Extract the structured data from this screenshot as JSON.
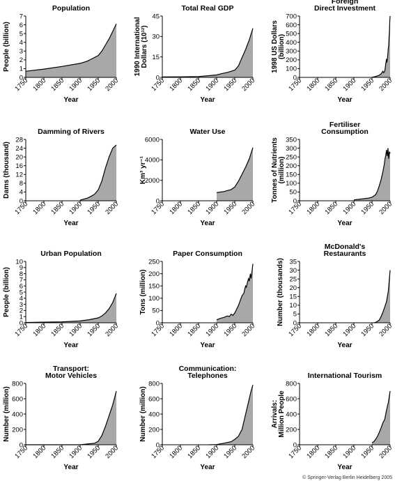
{
  "credit": "© Springer-Verlag Berlin Heidelberg 2005",
  "colors": {
    "fill": "#a8a8a8",
    "line": "#000000"
  },
  "chart_data": [
    {
      "type": "area",
      "title": [
        "Population"
      ],
      "ylabel": [
        "People (billion)"
      ],
      "xlabel": "Year",
      "xlim": [
        1750,
        2000
      ],
      "ylim": [
        0,
        7
      ],
      "xticks": [
        1750,
        1800,
        1850,
        1900,
        1950,
        2000
      ],
      "yticks": [
        0,
        1,
        2,
        3,
        4,
        5,
        6,
        7
      ],
      "x": [
        1750,
        1800,
        1850,
        1900,
        1920,
        1950,
        1960,
        1970,
        1980,
        1990,
        2000
      ],
      "y": [
        0.7,
        0.95,
        1.25,
        1.6,
        1.85,
        2.5,
        3.0,
        3.7,
        4.4,
        5.25,
        6.1
      ]
    },
    {
      "type": "area",
      "title": [
        "Total Real GDP"
      ],
      "ylabel": [
        "1990 International",
        "Dollars (10¹²)"
      ],
      "xlabel": "Year",
      "xlim": [
        1750,
        2000
      ],
      "ylim": [
        0,
        45
      ],
      "xticks": [
        1750,
        1800,
        1850,
        1900,
        1950,
        2000
      ],
      "yticks": [
        0,
        15,
        30,
        45
      ],
      "x": [
        1750,
        1800,
        1850,
        1900,
        1913,
        1930,
        1950,
        1960,
        1970,
        1980,
        1990,
        2000
      ],
      "y": [
        0.3,
        0.4,
        0.6,
        1.8,
        2.7,
        3.7,
        5.3,
        8.4,
        14.5,
        20.5,
        27.5,
        36
      ]
    },
    {
      "type": "area",
      "title": [
        "Foreign",
        "Direct Investment"
      ],
      "ylabel": [
        "1998 US Dollars",
        "(billion)"
      ],
      "xlabel": "Year",
      "xlim": [
        1750,
        2000
      ],
      "ylim": [
        0,
        700
      ],
      "xticks": [
        1750,
        1800,
        1850,
        1900,
        1950,
        2000
      ],
      "yticks": [
        0,
        100,
        200,
        300,
        400,
        500,
        600,
        700
      ],
      "x": [
        1950,
        1960,
        1970,
        1975,
        1980,
        1982,
        1984,
        1986,
        1988,
        1990,
        1991,
        1993,
        1995,
        1996,
        1997,
        1998,
        1999,
        2000
      ],
      "y": [
        0,
        10,
        25,
        40,
        70,
        55,
        60,
        90,
        160,
        210,
        170,
        230,
        330,
        360,
        450,
        520,
        640,
        700
      ]
    },
    {
      "type": "area",
      "title": [
        "Damming of Rivers"
      ],
      "ylabel": [
        "Dams (thousand)"
      ],
      "xlabel": "Year",
      "xlim": [
        1750,
        2000
      ],
      "ylim": [
        0,
        28
      ],
      "xticks": [
        1750,
        1800,
        1850,
        1900,
        1950,
        2000
      ],
      "yticks": [
        0,
        4,
        8,
        12,
        16,
        20,
        24,
        28
      ],
      "x": [
        1900,
        1920,
        1930,
        1940,
        1950,
        1960,
        1970,
        1980,
        1990,
        2000
      ],
      "y": [
        0.3,
        1.2,
        2,
        3,
        5,
        9,
        15,
        20,
        24,
        25.5
      ]
    },
    {
      "type": "area",
      "title": [
        "Water Use"
      ],
      "ylabel": [
        "Km³ yr⁻¹"
      ],
      "xlabel": "Year",
      "xlim": [
        1750,
        2000
      ],
      "ylim": [
        0,
        6000
      ],
      "xticks": [
        1750,
        1800,
        1850,
        1900,
        1950,
        2000
      ],
      "yticks": [
        0,
        2000,
        4000,
        6000
      ],
      "x": [
        1900,
        1910,
        1920,
        1930,
        1940,
        1950,
        1960,
        1970,
        1980,
        1990,
        2000
      ],
      "y": [
        800,
        850,
        900,
        1000,
        1100,
        1350,
        1900,
        2600,
        3300,
        4100,
        5200
      ]
    },
    {
      "type": "area",
      "title": [
        "Fertiliser",
        "Consumption"
      ],
      "ylabel": [
        "Tonnes of Nutrients",
        "(million)"
      ],
      "xlabel": "Year",
      "xlim": [
        1750,
        2000
      ],
      "ylim": [
        0,
        350
      ],
      "xticks": [
        1750,
        1800,
        1850,
        1900,
        1950,
        2000
      ],
      "yticks": [
        0,
        50,
        100,
        150,
        200,
        250,
        300,
        350
      ],
      "x": [
        1900,
        1920,
        1940,
        1950,
        1960,
        1965,
        1970,
        1975,
        1980,
        1984,
        1986,
        1988,
        1990,
        1992,
        1994,
        1996,
        1998,
        2000
      ],
      "y": [
        5,
        10,
        15,
        20,
        35,
        55,
        85,
        120,
        165,
        210,
        240,
        260,
        290,
        255,
        300,
        240,
        280,
        270
      ]
    },
    {
      "type": "area",
      "title": [
        "Urban Population"
      ],
      "ylabel": [
        "People (billion)"
      ],
      "xlabel": "Year",
      "xlim": [
        1750,
        2000
      ],
      "ylim": [
        0,
        10
      ],
      "xticks": [
        1750,
        1800,
        1850,
        1900,
        1950,
        2000
      ],
      "yticks": [
        0,
        1,
        2,
        3,
        4,
        5,
        6,
        7,
        8,
        9,
        10
      ],
      "x": [
        1750,
        1800,
        1850,
        1900,
        1925,
        1950,
        1960,
        1970,
        1980,
        1990,
        2000
      ],
      "y": [
        0.05,
        0.1,
        0.15,
        0.3,
        0.5,
        0.8,
        1.1,
        1.6,
        2.3,
        3.3,
        4.8
      ]
    },
    {
      "type": "area",
      "title": [
        "Paper Consumption"
      ],
      "ylabel": [
        "Tons (million)"
      ],
      "xlabel": "Year",
      "xlim": [
        1750,
        2000
      ],
      "ylim": [
        0,
        250
      ],
      "xticks": [
        1750,
        1800,
        1850,
        1900,
        1950,
        2000
      ],
      "yticks": [
        0,
        50,
        100,
        150,
        200,
        250
      ],
      "x": [
        1900,
        1910,
        1920,
        1930,
        1935,
        1940,
        1945,
        1950,
        1955,
        1960,
        1965,
        1970,
        1975,
        1978,
        1980,
        1982,
        1985,
        1988,
        1990,
        1993,
        1995,
        1998,
        2000
      ],
      "y": [
        12,
        18,
        22,
        28,
        25,
        35,
        30,
        40,
        55,
        70,
        90,
        110,
        120,
        140,
        150,
        145,
        165,
        180,
        170,
        200,
        180,
        215,
        240
      ]
    },
    {
      "type": "area",
      "title": [
        "McDonald's",
        "Restaurants"
      ],
      "ylabel": [
        "Number (thousands)"
      ],
      "xlabel": "Year",
      "xlim": [
        1750,
        2000
      ],
      "ylim": [
        0,
        35
      ],
      "xticks": [
        1750,
        1800,
        1850,
        1900,
        1950,
        2000
      ],
      "yticks": [
        0,
        5,
        10,
        15,
        20,
        25,
        30,
        35
      ],
      "x": [
        1955,
        1960,
        1970,
        1975,
        1980,
        1985,
        1990,
        1995,
        2000
      ],
      "y": [
        0,
        0.2,
        1.5,
        3.5,
        6,
        9,
        12,
        18,
        30
      ]
    },
    {
      "type": "area",
      "title": [
        "Transport:",
        "Motor Vehicles"
      ],
      "ylabel": [
        "Number (million)"
      ],
      "xlabel": "Year",
      "xlim": [
        1750,
        2000
      ],
      "ylim": [
        0,
        800
      ],
      "xticks": [
        1750,
        1800,
        1850,
        1900,
        1950,
        2000
      ],
      "yticks": [
        0,
        200,
        400,
        600,
        800
      ],
      "x": [
        1750,
        1900,
        1940,
        1950,
        1960,
        1970,
        1980,
        1990,
        2000
      ],
      "y": [
        0,
        0,
        20,
        45,
        120,
        240,
        380,
        520,
        700
      ]
    },
    {
      "type": "area",
      "title": [
        "Communication:",
        "Telephones"
      ],
      "ylabel": [
        "Number (million)"
      ],
      "xlabel": "Year",
      "xlim": [
        1750,
        2000
      ],
      "ylim": [
        0,
        800
      ],
      "xticks": [
        1750,
        1800,
        1850,
        1900,
        1950,
        2000
      ],
      "yticks": [
        0,
        200,
        400,
        600,
        800
      ],
      "x": [
        1880,
        1900,
        1920,
        1940,
        1950,
        1960,
        1970,
        1980,
        1985,
        1990,
        1995,
        2000
      ],
      "y": [
        0,
        3,
        20,
        40,
        70,
        110,
        200,
        400,
        500,
        600,
        700,
        780
      ]
    },
    {
      "type": "area",
      "title": [
        "International Tourism"
      ],
      "ylabel": [
        "Arrivals:",
        "Million People"
      ],
      "xlabel": "Year",
      "xlim": [
        1750,
        2000
      ],
      "ylim": [
        0,
        800
      ],
      "xticks": [
        1750,
        1800,
        1850,
        1900,
        1950,
        2000
      ],
      "yticks": [
        0,
        200,
        400,
        600,
        800
      ],
      "x": [
        1950,
        1955,
        1960,
        1965,
        1970,
        1975,
        1980,
        1985,
        1990,
        1995,
        2000
      ],
      "y": [
        25,
        40,
        70,
        110,
        160,
        220,
        285,
        330,
        450,
        550,
        700
      ]
    }
  ]
}
